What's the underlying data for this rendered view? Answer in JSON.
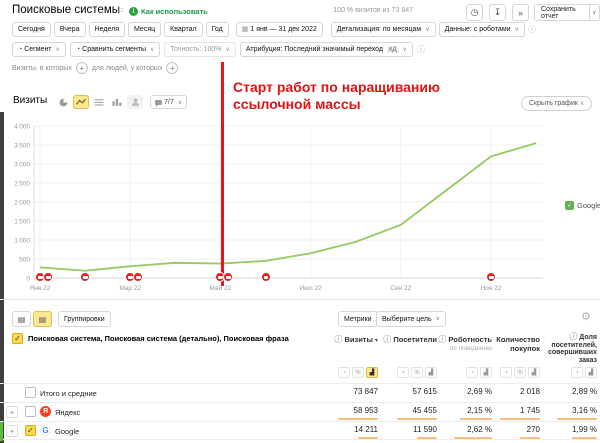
{
  "header": {
    "title": "Поисковые системы",
    "usage_link": "Как использовать",
    "visits_share": "100 % визитов из 73 847",
    "save_report": "Сохранить отчет"
  },
  "toolbar": {
    "periods": [
      "Сегодня",
      "Вчера",
      "Неделя",
      "Месяц",
      "Квартал",
      "Год"
    ],
    "date_range": "1 янв — 31 дек 2022",
    "detalization": "Детализация: по месяцам",
    "data_mode": "Данные: с роботами"
  },
  "filters": {
    "segment": "Сегмент",
    "compare_segments": "Сравнить сегменты",
    "accuracy": "Точность: 100%",
    "attribution": "Атрибуция: Последний значимый переход",
    "attribution_badge": "КД",
    "visits_condition": "Визиты, в которых",
    "people_condition": "для людей, у которых"
  },
  "chart_header": {
    "metric_label": "Визиты",
    "comments_count": "7/7",
    "hide_chart": "Скрыть график"
  },
  "chart_data": {
    "type": "line",
    "title": "Визиты",
    "x": [
      "Янв 22",
      "Фев 22",
      "Мар 22",
      "Апр 22",
      "Май 22",
      "Июн 22",
      "Июл 22",
      "Авг 22",
      "Сен 22",
      "Окт 22",
      "Ноя 22",
      "Дек 22"
    ],
    "series": [
      {
        "name": "Google",
        "color": "#94ca5f",
        "values": [
          280,
          190,
          310,
          400,
          380,
          450,
          650,
          950,
          1400,
          2300,
          3200,
          3550
        ]
      }
    ],
    "ylim": [
      0,
      4000
    ],
    "ytick_step": 500,
    "xtick_labels": [
      "Янв 22",
      "Мар 22",
      "Май 22",
      "Июл 22",
      "Сен 22",
      "Ноя 22"
    ],
    "grid": true,
    "legend_position": "right",
    "annotation": {
      "text_line1": "Старт работ по наращиванию",
      "text_line2": "ссылочной массы",
      "line_month": "Май 22",
      "color": "#e41818"
    },
    "comment_markers_months": [
      "Янв 22",
      "Янв 22",
      "Фев 22",
      "Мар 22",
      "Мар 22",
      "Май 22",
      "Май 22",
      "Июн 22",
      "Ноя 22"
    ]
  },
  "table": {
    "groupings": "Группировки",
    "dimension": "Поисковая система, Поисковая система (детально), Поисковая фраза",
    "metrics_button": "Метрики",
    "goal_button": "Выберите цель",
    "columns": [
      {
        "label": "Визиты",
        "info": true,
        "sorted": "desc"
      },
      {
        "label": "Посетители",
        "info": true
      },
      {
        "label": "Роботность",
        "sublabel": "по поведению",
        "info": true
      },
      {
        "label": "Количество покупок"
      },
      {
        "label": "Доля посетителей, совершивших заказ",
        "info": true
      }
    ],
    "rows": [
      {
        "label": "Итого и средние",
        "checked": false,
        "values": [
          "73 847",
          "57 615",
          "2,69 %",
          "2 018",
          "2,89 %"
        ],
        "bars": [
          0,
          0,
          0,
          0,
          0
        ]
      },
      {
        "label": "Яндекс",
        "favicon_letter": "Я",
        "checked": false,
        "values": [
          "58 953",
          "45 455",
          "2,15 %",
          "1 745",
          "3,16 %"
        ],
        "bars": [
          1,
          1,
          0.8,
          1,
          1
        ]
      },
      {
        "label": "Google",
        "favicon_letter": "G",
        "checked": true,
        "values": [
          "14 211",
          "11 590",
          "2,62 %",
          "270",
          "1,99 %"
        ],
        "bars": [
          0.5,
          0.5,
          0.95,
          0.5,
          0.63
        ]
      }
    ]
  },
  "icons": {
    "bookmark": "⚐",
    "info_green": "i",
    "clock": "◷",
    "download": "↧",
    "pointer": "»",
    "calendar": "▦",
    "segment_pie": "◔",
    "compare": "◔",
    "plus": "+",
    "gear": "⚙",
    "view_list": "▤",
    "pie": "◔",
    "percent": "%",
    "bars": "▟",
    "check": "✓",
    "sort_desc": "▾",
    "chevron_down": "∨",
    "chevron_up": "∧",
    "info": "ⓘ"
  },
  "colors": {
    "accent_yellow": "#ffdb4d",
    "line_green": "#94ca5f",
    "annotation_red": "#e41818",
    "bar_orange": "#f6bf7d",
    "yandex_red": "#fc3f1d"
  }
}
